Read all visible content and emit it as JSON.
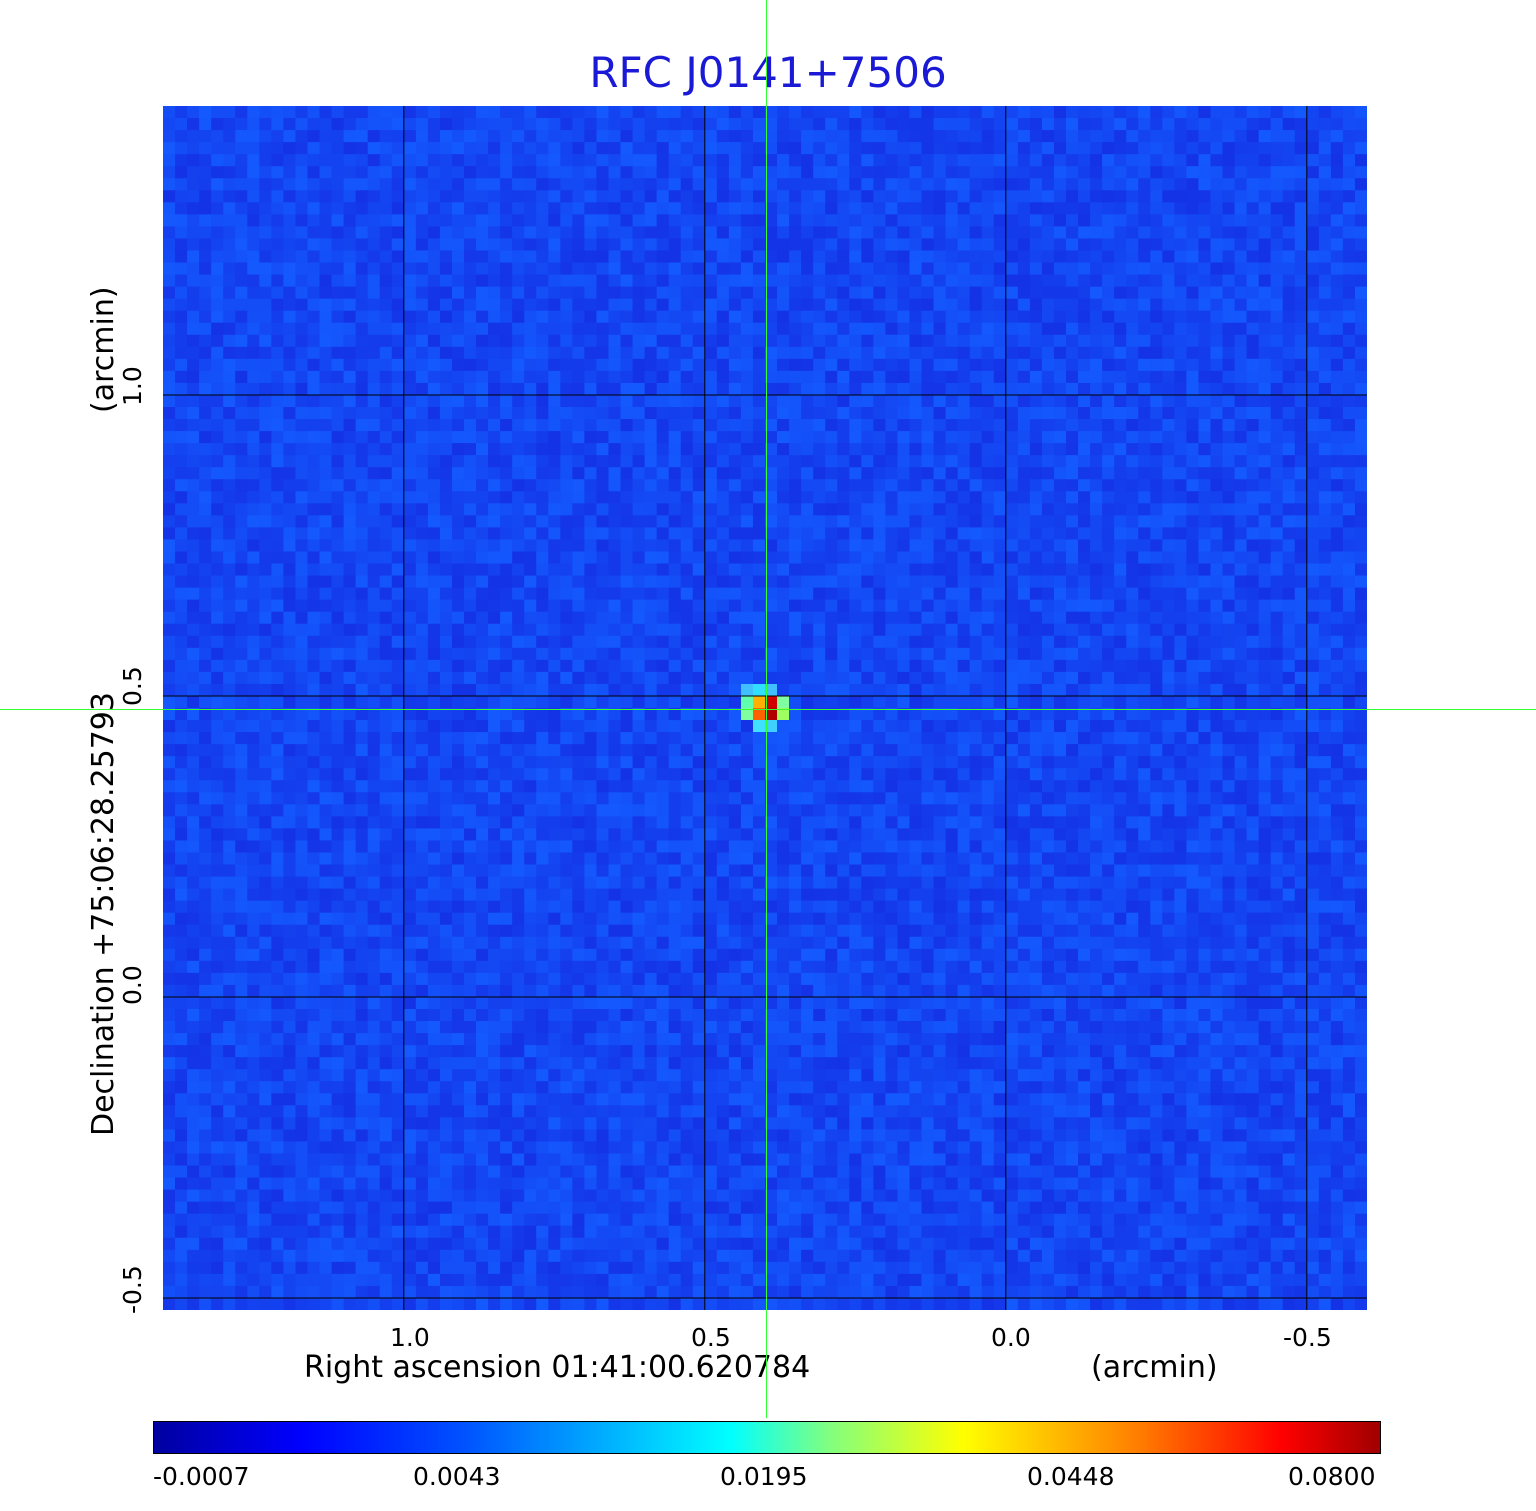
{
  "chart_data": {
    "type": "heatmap",
    "title": "RFC J0141+7506",
    "xlabel": "Right ascension  01:41:00.620784",
    "xunit": "(arcmin)",
    "ylabel": "Declination  +75:06:28.25793",
    "yunit": "(arcmin)",
    "x_ticks": [
      "1.0",
      "0.5",
      "0.0",
      "-0.5"
    ],
    "x_tick_values": [
      1.0,
      0.5,
      0.0,
      -0.5
    ],
    "y_ticks": [
      "1.0",
      "0.5",
      "0.0",
      "-0.5"
    ],
    "y_tick_values": [
      1.0,
      0.5,
      0.0,
      -0.5
    ],
    "xlim": [
      1.4,
      -0.6
    ],
    "ylim": [
      -0.52,
      1.48
    ],
    "source": {
      "x": 0.4,
      "y": 0.48,
      "peak": 0.08
    },
    "crosshair": {
      "x": 0.4,
      "y": 0.475
    },
    "colorbar": {
      "colormap": "jet",
      "ticks": [
        "-0.0007",
        "0.0043",
        "0.0195",
        "0.0448",
        "0.0800"
      ],
      "tick_values": [
        -0.0007,
        0.0043,
        0.0195,
        0.0448,
        0.08
      ]
    },
    "grid": true
  },
  "colors": {
    "title": "#1a1ad6",
    "background_map": "#1f44f0",
    "grid": "#000000",
    "crosshair": "#33ff33"
  }
}
